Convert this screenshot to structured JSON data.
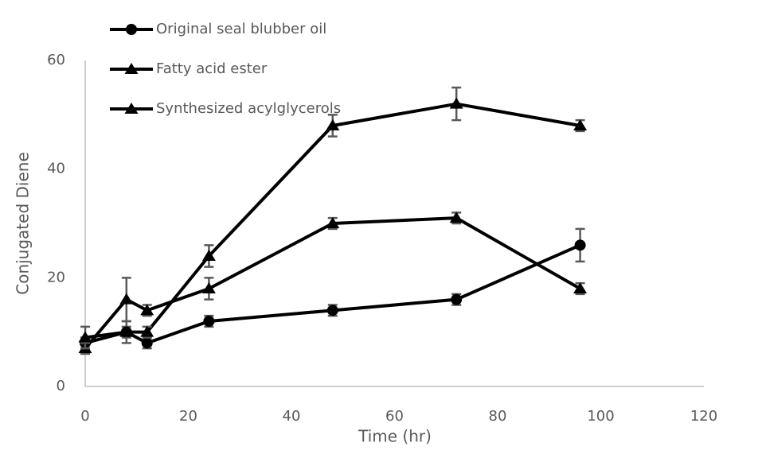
{
  "chart_data": {
    "type": "line",
    "x_label": "Time (hr)",
    "y_label": "Conjugated Diene",
    "x": [
      0,
      8,
      12,
      24,
      48,
      72,
      96
    ],
    "series": [
      {
        "name": "Original seal blubber oil",
        "color": "#000000",
        "marker": "circle",
        "values": [
          8,
          10,
          8,
          12,
          14,
          16,
          26
        ],
        "errors": [
          1,
          1,
          1,
          1,
          1,
          1,
          3
        ]
      },
      {
        "name": "Fatty acid ester",
        "color": "#000000",
        "marker": "triangle",
        "values": [
          7,
          16,
          14,
          18,
          30,
          31,
          18
        ],
        "errors": [
          1,
          4,
          1,
          2,
          1,
          1,
          1
        ]
      },
      {
        "name": "Synthesized acylglycerols",
        "color": "#000000",
        "marker": "triangle",
        "values": [
          9,
          10,
          10,
          24,
          48,
          52,
          48
        ],
        "errors": [
          2,
          2,
          1,
          2,
          2,
          3,
          1
        ]
      }
    ],
    "error_color": "#595959",
    "xlim": [
      0,
      120
    ],
    "xticks": [
      0,
      20,
      40,
      60,
      80,
      100,
      120
    ],
    "ylim": [
      0,
      60
    ],
    "yticks": [
      0,
      20,
      40,
      60
    ],
    "grid": false,
    "legend": "top-left"
  }
}
